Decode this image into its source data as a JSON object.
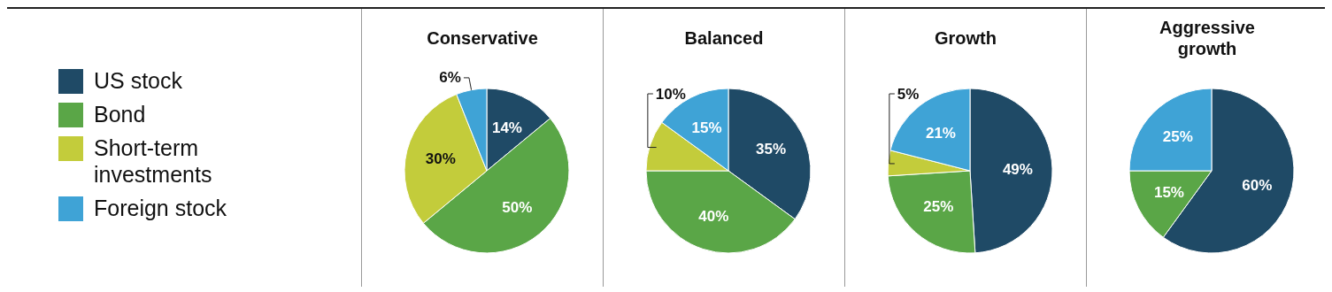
{
  "chart_data": [
    {
      "type": "pie",
      "title": "Conservative",
      "legend": "left",
      "categories": [
        "US stock",
        "Bond",
        "Short-term investments",
        "Foreign stock"
      ],
      "values": [
        14,
        50,
        30,
        6
      ],
      "value_labels": [
        "14%",
        "50%",
        "30%",
        "6%"
      ],
      "colors": [
        "#1f4a66",
        "#5aa647",
        "#c3cc3b",
        "#3fa3d6"
      ]
    },
    {
      "type": "pie",
      "title": "Balanced",
      "categories": [
        null,
        null,
        null,
        null
      ],
      "values": [
        35,
        40,
        10,
        15
      ],
      "value_labels": [
        "35%",
        "40%",
        "10%",
        "15%"
      ],
      "colors": [
        "#1f4a66",
        "#5aa647",
        "#c3cc3b",
        "#3fa3d6"
      ]
    },
    {
      "type": "pie",
      "title": "Growth",
      "categories": [
        null,
        null,
        null,
        null
      ],
      "values": [
        49,
        25,
        5,
        21
      ],
      "value_labels": [
        "49%",
        "25%",
        "5%",
        "21%"
      ],
      "colors": [
        "#1f4a66",
        "#5aa647",
        "#c3cc3b",
        "#3fa3d6"
      ]
    },
    {
      "type": "pie",
      "title": "Aggressive growth",
      "categories": [
        null,
        null,
        null
      ],
      "values": [
        60,
        15,
        25
      ],
      "value_labels": [
        "60%",
        "15%",
        "25%"
      ],
      "colors": [
        "#1f4a66",
        "#5aa647",
        "#3fa3d6"
      ]
    }
  ]
}
